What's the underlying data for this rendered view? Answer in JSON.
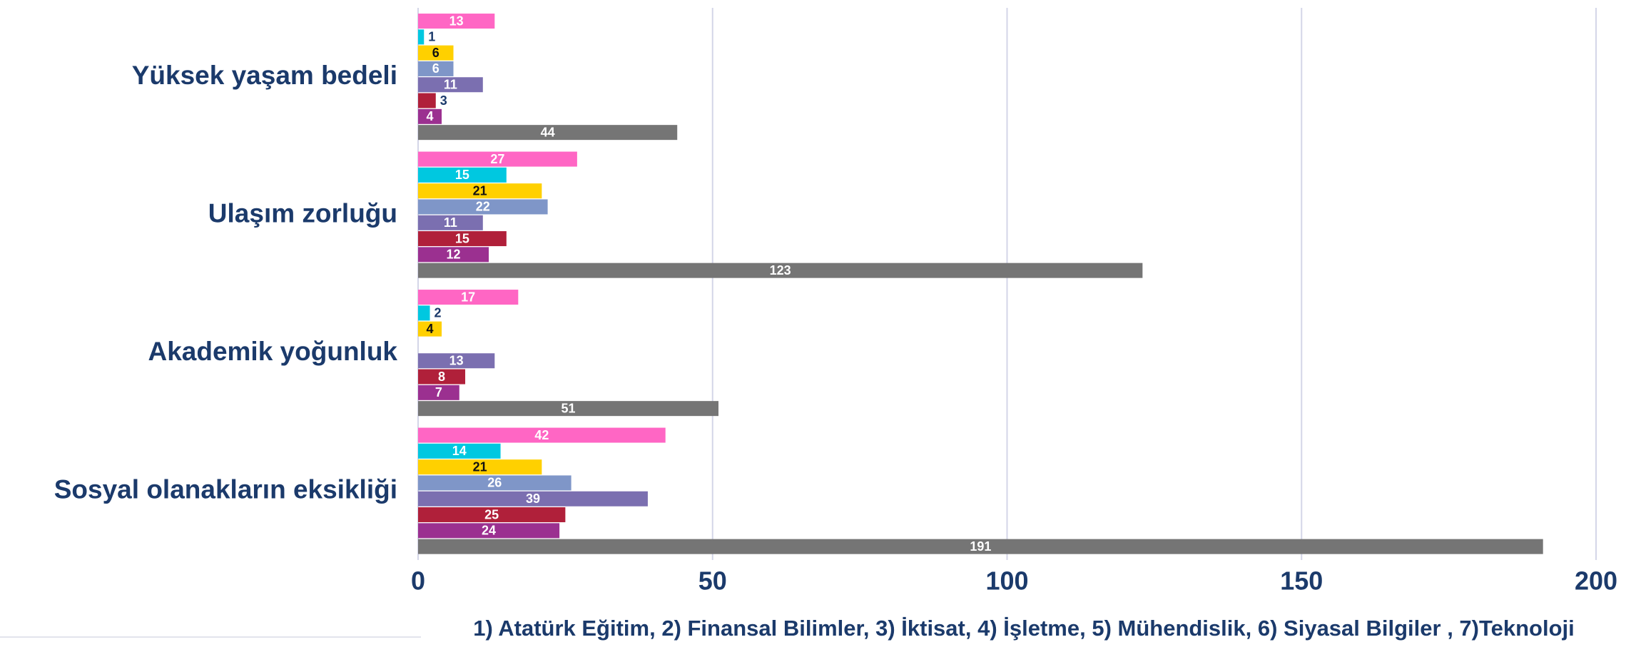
{
  "chart_data": {
    "type": "bar",
    "orientation": "horizontal",
    "x_label": "1) Atatürk Eğitim, 2) Finansal Bilimler, 3) İktisat, 4) İşletme, 5) Mühendislik, 6) Siyasal Bilgiler , 7)Teknoloji",
    "categories": [
      "Yüksek yaşam bedeli",
      "Ulaşım zorluğu",
      "Akademik yoğunluk",
      "Sosyal olanakların eksikliği"
    ],
    "series": [
      {
        "color": "#ff66c4",
        "values": [
          13,
          27,
          17,
          42
        ]
      },
      {
        "color": "#00c8e0",
        "values": [
          1,
          15,
          2,
          14
        ]
      },
      {
        "color": "#ffd000",
        "values": [
          6,
          21,
          4,
          21
        ]
      },
      {
        "color": "#7f96c8",
        "values": [
          6,
          22,
          null,
          26
        ]
      },
      {
        "color": "#7b6fb0",
        "values": [
          11,
          11,
          13,
          39
        ]
      },
      {
        "color": "#b0203a",
        "values": [
          3,
          15,
          8,
          25
        ]
      },
      {
        "color": "#9b3090",
        "values": [
          4,
          12,
          7,
          24
        ]
      },
      {
        "color": "#757575",
        "values": [
          44,
          123,
          51,
          191
        ]
      }
    ],
    "xlim": [
      0,
      200
    ],
    "xticks": [
      0,
      50,
      100,
      150,
      200
    ],
    "grid": true
  }
}
